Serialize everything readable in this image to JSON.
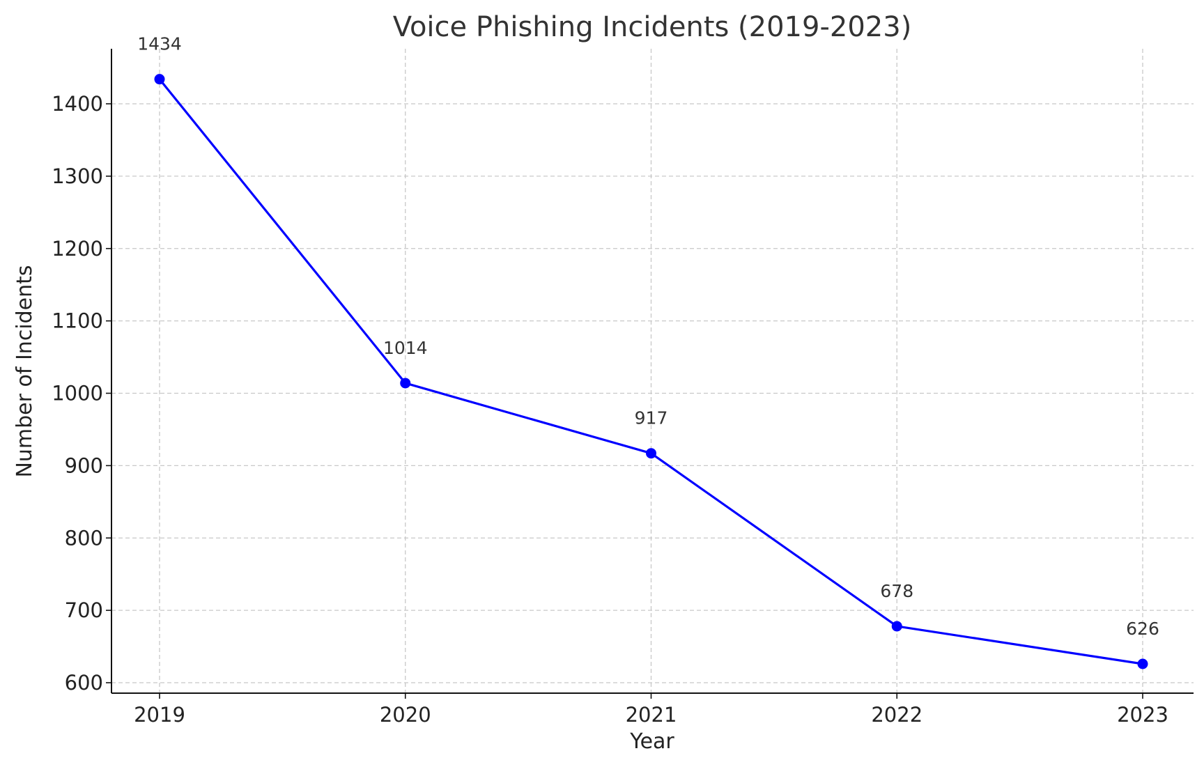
{
  "chart_data": {
    "type": "line",
    "title": "Voice Phishing Incidents (2019-2023)",
    "xlabel": "Year",
    "ylabel": "Number of Incidents",
    "categories": [
      "2019",
      "2020",
      "2021",
      "2022",
      "2023"
    ],
    "series": [
      {
        "values": [
          1434,
          1014,
          917,
          678,
          626
        ],
        "color": "#0000ff",
        "marker": "circle"
      }
    ],
    "data_labels": [
      "1434",
      "1014",
      "917",
      "678",
      "626"
    ],
    "yticks": [
      600,
      700,
      800,
      900,
      1000,
      1100,
      1200,
      1300,
      1400
    ],
    "ylim": [
      586,
      1476
    ],
    "grid": true,
    "legend": "none"
  }
}
